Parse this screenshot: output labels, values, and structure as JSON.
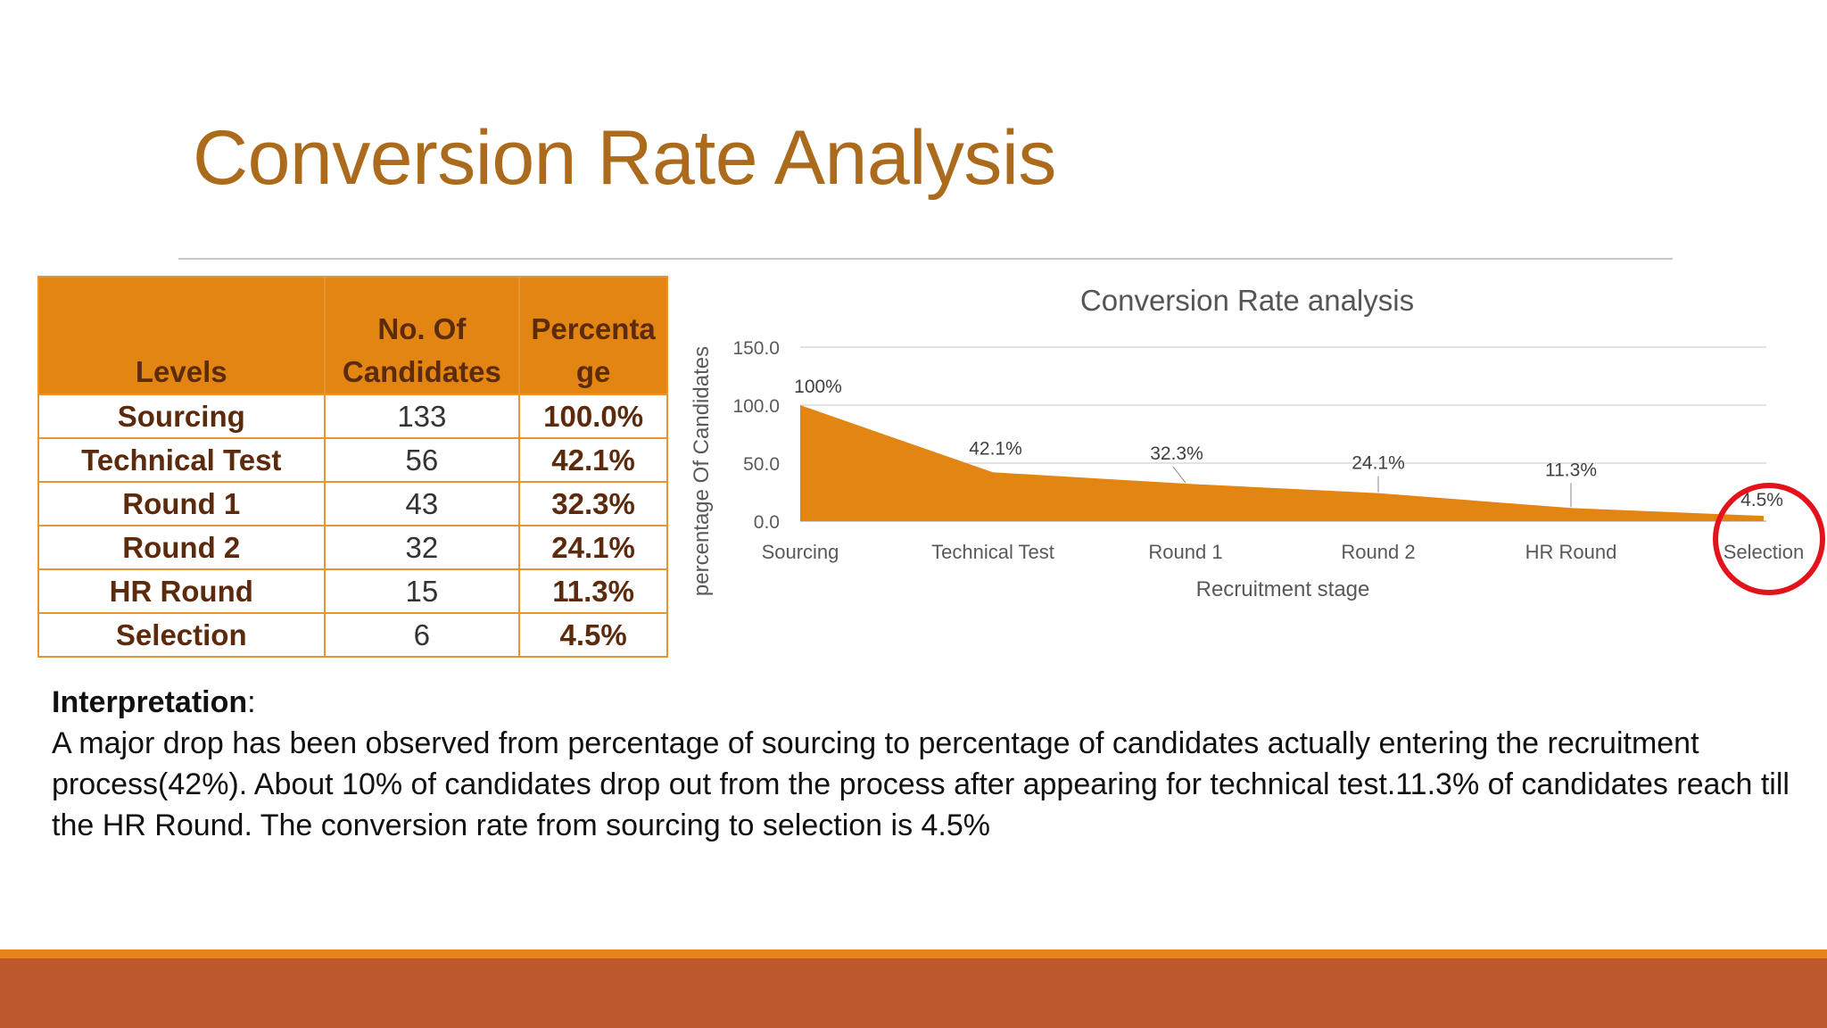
{
  "slide": {
    "title": "Conversion Rate Analysis"
  },
  "table": {
    "headers": [
      "Levels",
      "No. Of Candidates",
      "Percentage"
    ],
    "headers_display": [
      [
        "Levels"
      ],
      [
        "No. Of",
        "Candidates"
      ],
      [
        "Percenta",
        "ge"
      ]
    ],
    "rows": [
      {
        "level": "Sourcing",
        "count": "133",
        "pct": "100.0%"
      },
      {
        "level": "Technical Test",
        "count": "56",
        "pct": "42.1%"
      },
      {
        "level": "Round 1",
        "count": "43",
        "pct": "32.3%"
      },
      {
        "level": "Round 2",
        "count": "32",
        "pct": "24.1%"
      },
      {
        "level": "HR Round",
        "count": "15",
        "pct": "11.3%"
      },
      {
        "level": "Selection",
        "count": "6",
        "pct": "4.5%"
      }
    ]
  },
  "chart_data": {
    "type": "area",
    "title": "Conversion Rate analysis",
    "xlabel": "Recruitment stage",
    "ylabel": "percentage Of Candidates",
    "categories": [
      "Sourcing",
      "Technical Test",
      "Round 1",
      "Round 2",
      "HR Round",
      "Selection"
    ],
    "values": [
      100,
      42.1,
      32.3,
      24.1,
      11.3,
      4.5
    ],
    "data_labels": [
      "100%",
      "42.1%",
      "32.3%",
      "24.1%",
      "11.3%",
      "4.5%"
    ],
    "ylim": [
      0,
      150
    ],
    "yticks": [
      "0.0",
      "50.0",
      "100.0",
      "150.0"
    ],
    "grid": true,
    "legend": "none",
    "fill_color": "#e38513",
    "highlight": {
      "category": "Selection",
      "shape": "circle",
      "color": "#e3131b"
    }
  },
  "interpretation": {
    "heading": "Interpretation",
    "colon": ":",
    "body": "A major drop has been observed from  percentage of sourcing to percentage of candidates actually entering the recruitment process(42%). About 10% of candidates drop out from the process after appearing for technical test.11.3% of candidates reach till the HR Round. The conversion rate from sourcing to selection is 4.5%"
  },
  "colors": {
    "title": "#ac6b1c",
    "accent": "#e38513",
    "footer_band": "#bd582c",
    "table_text": "#5c2a0c"
  }
}
